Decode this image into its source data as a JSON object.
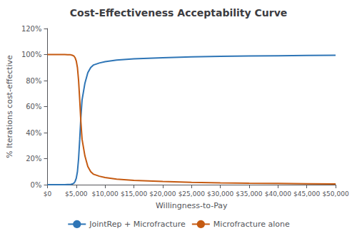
{
  "chart_data": {
    "type": "line",
    "title": "Cost-Effectiveness Acceptability Curve",
    "xlabel": "Willingness-to-Pay",
    "ylabel": "% Iterations cost-effective",
    "x": [
      0,
      500,
      1000,
      2000,
      3000,
      3500,
      4000,
      4200,
      4400,
      4600,
      4800,
      5000,
      5200,
      5400,
      5600,
      5800,
      6000,
      6500,
      7000,
      7500,
      8000,
      9000,
      10000,
      12000,
      15000,
      20000,
      25000,
      30000,
      35000,
      40000,
      45000,
      50000
    ],
    "series": [
      {
        "name": "JointRep + Microfracture",
        "color": "#2E75B6",
        "values": [
          0.0,
          0.0,
          0.0,
          0.0,
          0.0,
          0.001,
          0.002,
          0.004,
          0.007,
          0.012,
          0.025,
          0.05,
          0.1,
          0.2,
          0.35,
          0.52,
          0.65,
          0.78,
          0.86,
          0.9,
          0.92,
          0.935,
          0.945,
          0.958,
          0.967,
          0.976,
          0.982,
          0.986,
          0.989,
          0.991,
          0.993,
          0.995
        ]
      },
      {
        "name": "Microfracture alone",
        "color": "#C55A11",
        "values": [
          1.0,
          1.0,
          1.0,
          1.0,
          1.0,
          0.999,
          0.998,
          0.996,
          0.993,
          0.988,
          0.975,
          0.95,
          0.9,
          0.8,
          0.65,
          0.48,
          0.35,
          0.22,
          0.14,
          0.1,
          0.08,
          0.065,
          0.055,
          0.042,
          0.033,
          0.024,
          0.018,
          0.014,
          0.011,
          0.009,
          0.007,
          0.005
        ]
      }
    ],
    "xlim": [
      0,
      50000
    ],
    "ylim": [
      0,
      1.2
    ],
    "xticks": [
      {
        "value": 0,
        "label": "$0"
      },
      {
        "value": 5000,
        "label": "$5,000"
      },
      {
        "value": 10000,
        "label": "$10,000"
      },
      {
        "value": 15000,
        "label": "$15,000"
      },
      {
        "value": 20000,
        "label": "$20,000"
      },
      {
        "value": 25000,
        "label": "$25,000"
      },
      {
        "value": 30000,
        "label": "$30,000"
      },
      {
        "value": 35000,
        "label": "$35,000"
      },
      {
        "value": 40000,
        "label": "$40,000"
      },
      {
        "value": 45000,
        "label": "$45,000"
      },
      {
        "value": 50000,
        "label": "$50,000"
      }
    ],
    "yticks": [
      {
        "value": 0,
        "label": "0%"
      },
      {
        "value": 0.2,
        "label": "20%"
      },
      {
        "value": 0.4,
        "label": "40%"
      },
      {
        "value": 0.6,
        "label": "60%"
      },
      {
        "value": 0.8,
        "label": "80%"
      },
      {
        "value": 1.0,
        "label": "100%"
      },
      {
        "value": 1.2,
        "label": "120%"
      }
    ],
    "grid": false,
    "legend": "bottom"
  }
}
